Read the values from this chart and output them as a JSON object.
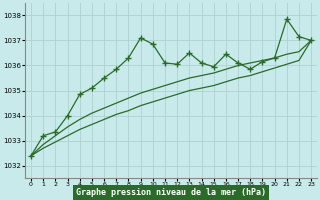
{
  "xlabel": "Graphe pression niveau de la mer (hPa)",
  "bg_color": "#c8eaea",
  "grid_color": "#b0d0d0",
  "line_color": "#2a6b2a",
  "ylim": [
    1031.5,
    1038.5
  ],
  "xlim": [
    -0.5,
    23.5
  ],
  "yticks": [
    1032,
    1033,
    1034,
    1035,
    1036,
    1037,
    1038
  ],
  "xticks": [
    0,
    1,
    2,
    3,
    4,
    5,
    6,
    7,
    8,
    9,
    10,
    11,
    12,
    13,
    14,
    15,
    16,
    17,
    18,
    19,
    20,
    21,
    22,
    23
  ],
  "hours": [
    0,
    1,
    2,
    3,
    4,
    5,
    6,
    7,
    8,
    9,
    10,
    11,
    12,
    13,
    14,
    15,
    16,
    17,
    18,
    19,
    20,
    21,
    22,
    23
  ],
  "series_main": [
    1032.4,
    1033.2,
    1033.35,
    1034.0,
    1034.85,
    1035.1,
    1035.5,
    1035.85,
    1036.3,
    1037.1,
    1036.85,
    1036.1,
    1036.05,
    1036.5,
    1036.1,
    1035.95,
    1036.45,
    1036.1,
    1035.85,
    1036.15,
    1036.3,
    1037.85,
    1037.15,
    1037.0
  ],
  "series_trend1": [
    1032.4,
    1032.7,
    1032.95,
    1033.2,
    1033.45,
    1033.65,
    1033.85,
    1034.05,
    1034.2,
    1034.4,
    1034.55,
    1034.7,
    1034.85,
    1035.0,
    1035.1,
    1035.2,
    1035.35,
    1035.5,
    1035.6,
    1035.75,
    1035.9,
    1036.05,
    1036.2,
    1037.0
  ],
  "series_trend2": [
    1032.4,
    1032.85,
    1033.2,
    1033.55,
    1033.85,
    1034.1,
    1034.3,
    1034.5,
    1034.7,
    1034.9,
    1035.05,
    1035.2,
    1035.35,
    1035.5,
    1035.6,
    1035.7,
    1035.85,
    1036.0,
    1036.1,
    1036.2,
    1036.3,
    1036.45,
    1036.55,
    1037.0
  ],
  "xlabel_bg": "#2a6b2a",
  "xlabel_fg": "#ffffff"
}
